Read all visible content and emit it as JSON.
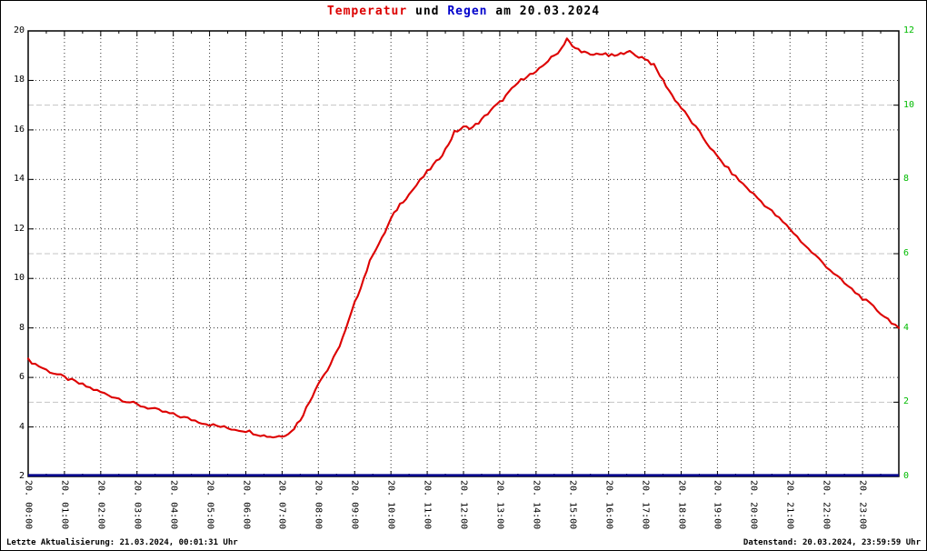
{
  "title": {
    "part1": "Temperatur",
    "part2": " und ",
    "part3": "Regen",
    "part4": " am 20.03.2024"
  },
  "footer": {
    "left": "Letzte Aktualisierung: 21.03.2024, 00:01:31 Uhr",
    "right": "Datenstand: 20.03.2024, 23:59:59 Uhr"
  },
  "colors": {
    "temperature": "#dd0000",
    "rain_line": "#00008b",
    "rain_text": "#0000cc",
    "right_axis_text": "#00bb00",
    "grid_major": "#333333",
    "grid_secondary": "#c4c4c4",
    "border": "#000000",
    "background": "#ffffff"
  },
  "chart_data": {
    "type": "line",
    "title": "Temperatur und Regen am 20.03.2024",
    "grid": "on",
    "legend_position": "none",
    "x_axis": {
      "range": [
        0,
        24
      ],
      "tick_hours": [
        0,
        1,
        2,
        3,
        4,
        5,
        6,
        7,
        8,
        9,
        10,
        11,
        12,
        13,
        14,
        15,
        16,
        17,
        18,
        19,
        20,
        21,
        22,
        23
      ],
      "tick_labels": [
        "20. 00:00",
        "20. 01:00",
        "20. 02:00",
        "20. 03:00",
        "20. 04:00",
        "20. 05:00",
        "20. 06:00",
        "20. 07:00",
        "20. 08:00",
        "20. 09:00",
        "20. 10:00",
        "20. 11:00",
        "20. 12:00",
        "20. 13:00",
        "20. 14:00",
        "20. 15:00",
        "20. 16:00",
        "20. 17:00",
        "20. 18:00",
        "20. 19:00",
        "20. 20:00",
        "20. 21:00",
        "20. 22:00",
        "20. 23:00"
      ]
    },
    "y_axis_left": {
      "range": [
        2,
        20
      ],
      "ticks": [
        2,
        4,
        6,
        8,
        10,
        12,
        14,
        16,
        18,
        20
      ]
    },
    "y_axis_right": {
      "range": [
        0,
        12
      ],
      "ticks": [
        0,
        2,
        4,
        6,
        8,
        10,
        12
      ]
    },
    "series": [
      {
        "name": "Temperatur",
        "axis": "left",
        "color": "#dd0000",
        "x": [
          0,
          0.5,
          1,
          1.5,
          2,
          2.5,
          3,
          3.5,
          4,
          4.5,
          5,
          5.5,
          6,
          6.5,
          6.75,
          7,
          7.25,
          7.5,
          7.75,
          8,
          8.25,
          8.5,
          8.75,
          9,
          9.25,
          9.5,
          9.75,
          10,
          10.25,
          10.5,
          11,
          11.25,
          11.5,
          11.75,
          12,
          12.25,
          12.5,
          12.75,
          13,
          13.25,
          13.5,
          13.75,
          14,
          14.25,
          14.5,
          14.7,
          14.85,
          15,
          15.25,
          15.5,
          15.75,
          16,
          16.25,
          16.5,
          16.75,
          17,
          17.25,
          17.5,
          17.75,
          18,
          18.5,
          19,
          19.5,
          20,
          20.5,
          21,
          21.5,
          22,
          22.5,
          23,
          23.5,
          24
        ],
        "y": [
          6.7,
          6.3,
          6.0,
          5.7,
          5.4,
          5.15,
          4.9,
          4.7,
          4.5,
          4.3,
          4.1,
          3.95,
          3.85,
          3.65,
          3.6,
          3.65,
          3.8,
          4.3,
          5.0,
          5.8,
          6.3,
          7.0,
          7.9,
          9.0,
          10.0,
          11.0,
          11.6,
          12.4,
          13.0,
          13.4,
          14.3,
          14.7,
          15.2,
          15.9,
          16.1,
          16.1,
          16.4,
          16.8,
          17.1,
          17.5,
          17.9,
          18.2,
          18.3,
          18.7,
          19.0,
          19.3,
          19.7,
          19.35,
          19.2,
          19.0,
          19.1,
          19.0,
          19.0,
          19.2,
          19.0,
          18.9,
          18.6,
          18.0,
          17.4,
          16.9,
          15.9,
          14.9,
          14.1,
          13.4,
          12.7,
          12.0,
          11.2,
          10.5,
          9.8,
          9.2,
          8.6,
          8.0
        ]
      },
      {
        "name": "Regen",
        "axis": "right",
        "color": "#00008b",
        "x": [
          0,
          24
        ],
        "y": [
          0,
          0
        ]
      }
    ]
  }
}
